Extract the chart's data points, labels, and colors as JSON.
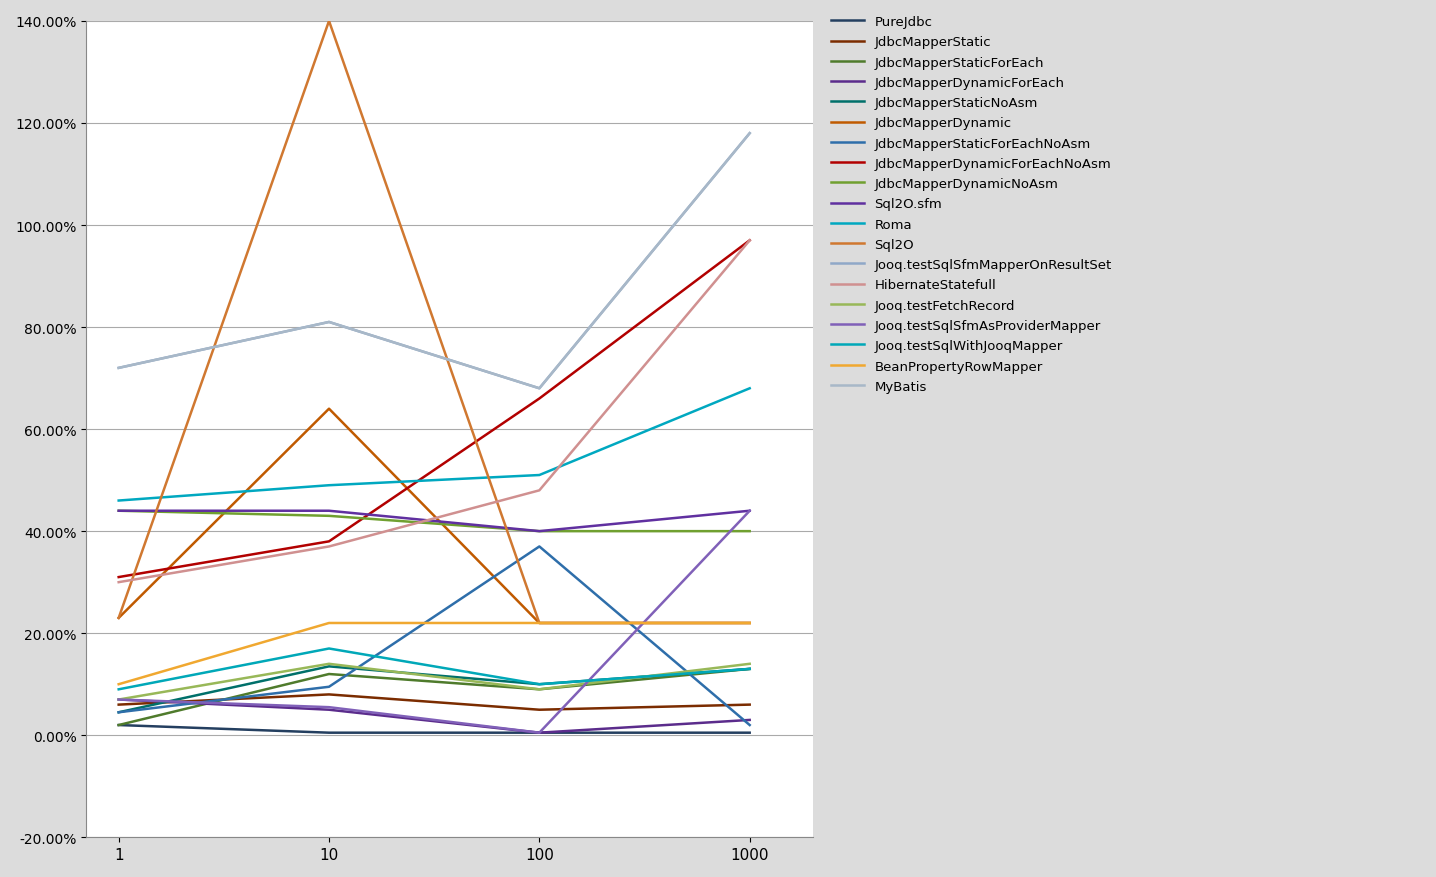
{
  "x_values": [
    1,
    10,
    100,
    1000
  ],
  "x_labels": [
    "1",
    "10",
    "100",
    "1000"
  ],
  "series": [
    {
      "name": "PureJdbc",
      "color": "#243F60",
      "values": [
        0.02,
        0.005,
        0.005,
        0.005
      ]
    },
    {
      "name": "JdbcMapperStatic",
      "color": "#7B2C00",
      "values": [
        0.06,
        0.08,
        0.05,
        0.06
      ]
    },
    {
      "name": "JdbcMapperStaticForEach",
      "color": "#4F7B2C",
      "values": [
        0.02,
        0.12,
        0.09,
        0.13
      ]
    },
    {
      "name": "JdbcMapperDynamicForEach",
      "color": "#5B2C8C",
      "values": [
        0.07,
        0.05,
        0.005,
        0.03
      ]
    },
    {
      "name": "JdbcMapperStaticNoAsm",
      "color": "#00706A",
      "values": [
        0.045,
        0.135,
        0.1,
        0.13
      ]
    },
    {
      "name": "JdbcMapperDynamic",
      "color": "#C05A00",
      "values": [
        0.23,
        0.64,
        0.22,
        0.22
      ]
    },
    {
      "name": "JdbcMapperStaticForEachNoAsm",
      "color": "#2E6EAA",
      "values": [
        0.045,
        0.095,
        0.37,
        0.02
      ]
    },
    {
      "name": "JdbcMapperDynamicForEachNoAsm",
      "color": "#B20000",
      "values": [
        0.31,
        0.38,
        0.66,
        0.97
      ]
    },
    {
      "name": "JdbcMapperDynamicNoAsm",
      "color": "#70A030",
      "values": [
        0.44,
        0.43,
        0.4,
        0.4
      ]
    },
    {
      "name": "Sql2O.sfm",
      "color": "#6030A0",
      "values": [
        0.44,
        0.44,
        0.4,
        0.44
      ]
    },
    {
      "name": "Roma",
      "color": "#00A8C0",
      "values": [
        0.46,
        0.49,
        0.51,
        0.68
      ]
    },
    {
      "name": "Sql2O",
      "color": "#D07830",
      "values": [
        0.23,
        1.4,
        0.22,
        0.22
      ]
    },
    {
      "name": "Jooq.testSqlSfmMapperOnResultSet",
      "color": "#8FA8C8",
      "values": [
        0.72,
        0.81,
        0.68,
        1.18
      ]
    },
    {
      "name": "HibernateStatefull",
      "color": "#D09090",
      "values": [
        0.3,
        0.37,
        0.48,
        0.97
      ]
    },
    {
      "name": "Jooq.testFetchRecord",
      "color": "#98B858",
      "values": [
        0.07,
        0.14,
        0.09,
        0.14
      ]
    },
    {
      "name": "Jooq.testSqlSfmAsProviderMapper",
      "color": "#8060B8",
      "values": [
        0.07,
        0.055,
        0.005,
        0.44
      ]
    },
    {
      "name": "Jooq.testSqlWithJooqMapper",
      "color": "#00A8B8",
      "values": [
        0.09,
        0.17,
        0.1,
        0.13
      ]
    },
    {
      "name": "BeanPropertyRowMapper",
      "color": "#F0A830",
      "values": [
        0.1,
        0.22,
        0.22,
        0.22
      ]
    },
    {
      "name": "MyBatis",
      "color": "#A8B8C8",
      "values": [
        0.72,
        0.81,
        0.68,
        1.18
      ]
    }
  ],
  "ylim": [
    -0.2,
    1.4
  ],
  "yticks": [
    -0.2,
    0.0,
    0.2,
    0.4,
    0.6,
    0.8,
    1.0,
    1.2,
    1.4
  ],
  "background_color": "#DCDCDC"
}
